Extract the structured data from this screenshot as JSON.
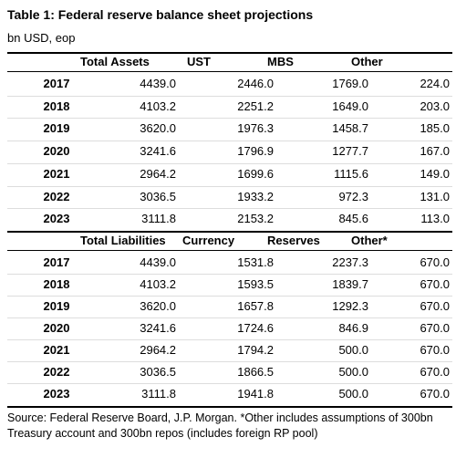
{
  "header": {
    "title": "Table 1: Federal reserve balance sheet projections",
    "subtitle": "bn USD, eop"
  },
  "tables": [
    {
      "columns": [
        "Total Assets",
        "UST",
        "MBS",
        "Other"
      ],
      "rows": [
        [
          "2017",
          "4439.0",
          "2446.0",
          "1769.0",
          "224.0"
        ],
        [
          "2018",
          "4103.2",
          "2251.2",
          "1649.0",
          "203.0"
        ],
        [
          "2019",
          "3620.0",
          "1976.3",
          "1458.7",
          "185.0"
        ],
        [
          "2020",
          "3241.6",
          "1796.9",
          "1277.7",
          "167.0"
        ],
        [
          "2021",
          "2964.2",
          "1699.6",
          "1115.6",
          "149.0"
        ],
        [
          "2022",
          "3036.5",
          "1933.2",
          "972.3",
          "131.0"
        ],
        [
          "2023",
          "3111.8",
          "2153.2",
          "845.6",
          "113.0"
        ]
      ]
    },
    {
      "columns": [
        "Total Liabilities",
        "Currency",
        "Reserves",
        "Other*"
      ],
      "rows": [
        [
          "2017",
          "4439.0",
          "1531.8",
          "2237.3",
          "670.0"
        ],
        [
          "2018",
          "4103.2",
          "1593.5",
          "1839.7",
          "670.0"
        ],
        [
          "2019",
          "3620.0",
          "1657.8",
          "1292.3",
          "670.0"
        ],
        [
          "2020",
          "3241.6",
          "1724.6",
          "846.9",
          "670.0"
        ],
        [
          "2021",
          "2964.2",
          "1794.2",
          "500.0",
          "670.0"
        ],
        [
          "2022",
          "3036.5",
          "1866.5",
          "500.0",
          "670.0"
        ],
        [
          "2023",
          "3111.8",
          "1941.8",
          "500.0",
          "670.0"
        ]
      ]
    }
  ],
  "footer": {
    "source": "Source: Federal Reserve Board, J.P. Morgan. *Other includes assumptions of 300bn Treasury account and 300bn repos (includes foreign RP pool)"
  }
}
